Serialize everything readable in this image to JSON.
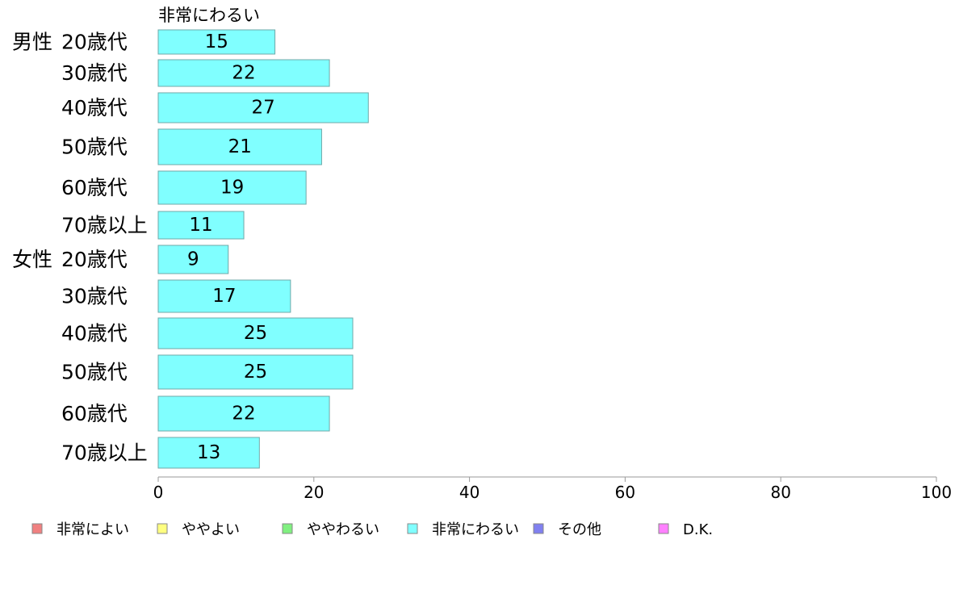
{
  "chart_data": {
    "type": "bar",
    "orientation": "horizontal",
    "stacked": true,
    "series_title": "非常にわるい",
    "groups": [
      "男性",
      "女性"
    ],
    "categories": [
      "20歳代",
      "30歳代",
      "40歳代",
      "50歳代",
      "60歳代",
      "70歳以上",
      "20歳代",
      "30歳代",
      "40歳代",
      "50歳代",
      "60歳代",
      "70歳以上"
    ],
    "category_group": [
      0,
      0,
      0,
      0,
      0,
      0,
      1,
      1,
      1,
      1,
      1,
      1
    ],
    "series": [
      {
        "name": "非常にわるい",
        "color": "#80ffff",
        "values": [
          15,
          22,
          27,
          21,
          19,
          11,
          9,
          17,
          25,
          25,
          22,
          13
        ]
      }
    ],
    "xlim": [
      0,
      100
    ],
    "xticks": [
      0,
      20,
      40,
      60,
      80,
      100
    ],
    "legend": {
      "position": "bottom",
      "items": [
        {
          "label": "非常によい",
          "color": "#f08080"
        },
        {
          "label": "ややよい",
          "color": "#ffff80"
        },
        {
          "label": "ややわるい",
          "color": "#80f080"
        },
        {
          "label": "非常にわるい",
          "color": "#80ffff"
        },
        {
          "label": "その他",
          "color": "#8080f0"
        },
        {
          "label": "D.K.",
          "color": "#ff80ff"
        }
      ]
    },
    "bar_border_color": "#6fa8a8",
    "axis_color": "#999999"
  }
}
